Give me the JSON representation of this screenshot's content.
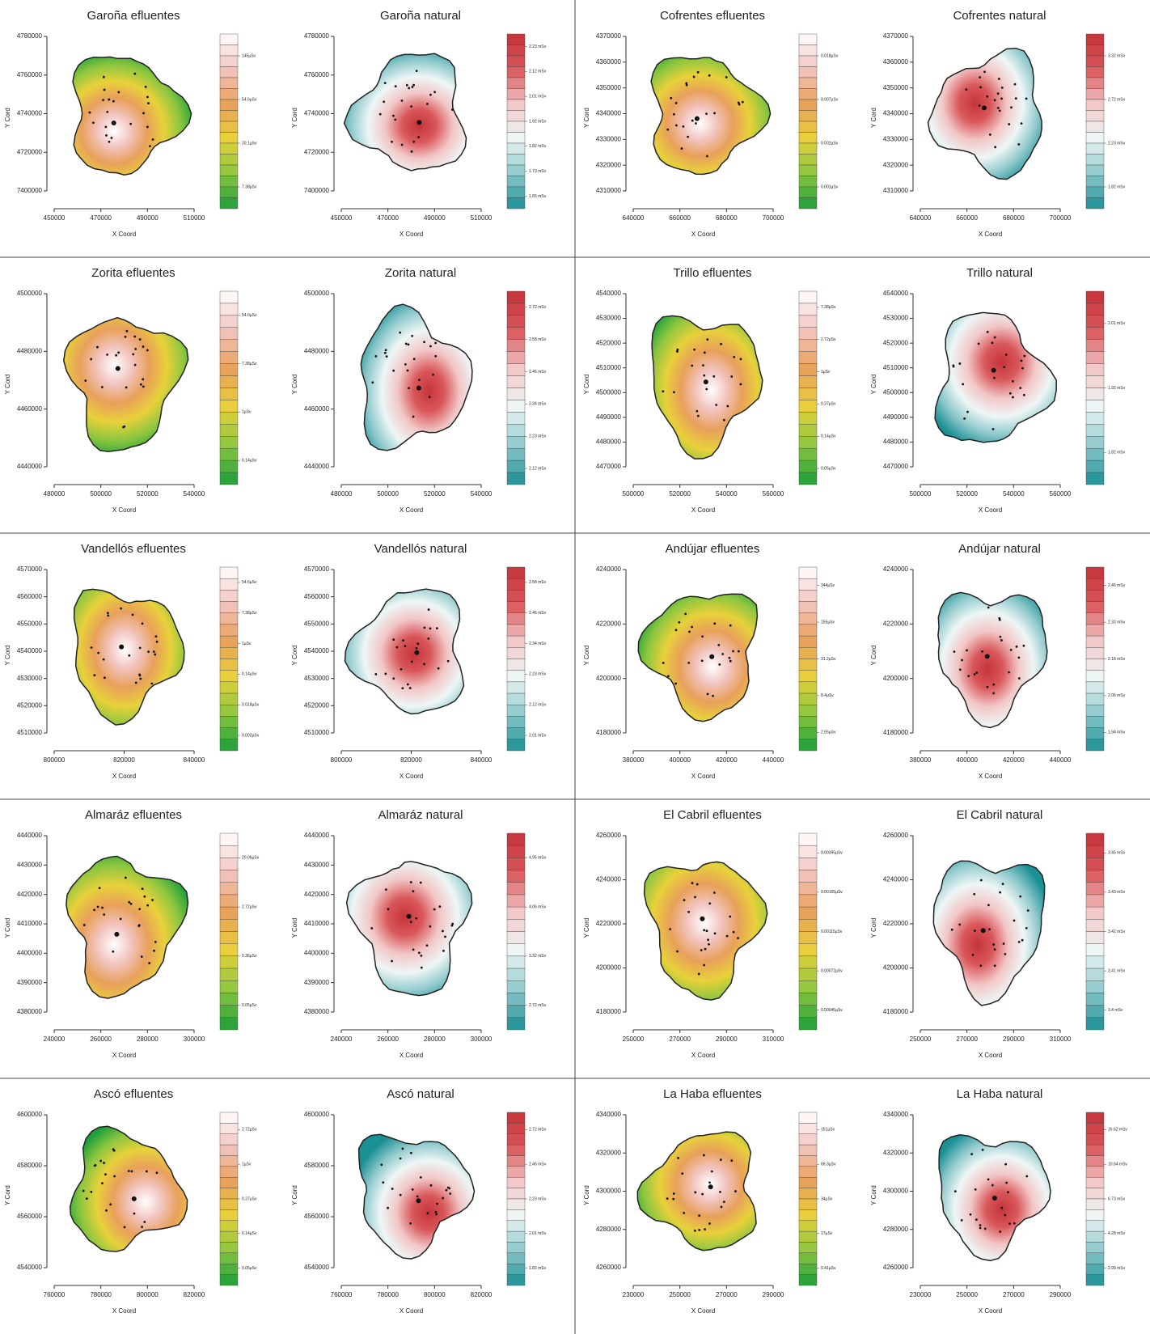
{
  "panels": [
    {
      "title": "Garoña efluentes",
      "xlabel": "X Coord",
      "ylabel": "Y Cord",
      "yticks": [
        4780000,
        4760000,
        4740000,
        4720000,
        7400000
      ],
      "xticks": [
        450000,
        470000,
        490000,
        510000
      ],
      "legend": [
        "145µSv",
        "54.6µSv",
        "20.1µSv",
        "7.38µSv"
      ],
      "colors": [
        "#1a9e3a",
        "#8cc63f",
        "#e8d13a",
        "#e8a05a",
        "#f2c4bf",
        "#ffffff"
      ]
    },
    {
      "title": "Garoña natural",
      "xlabel": "X Coord",
      "ylabel": "Y Cord",
      "yticks": [
        4780000,
        4760000,
        4740000,
        4720000,
        7400000
      ],
      "xticks": [
        450000,
        470000,
        490000,
        510000
      ],
      "legend": [
        "2.23 mSv",
        "2.12 mSv",
        "2.01 mSv",
        "1.92 mSv",
        "1.82 mSv",
        "1.73 mSv",
        "1.65 mSv"
      ],
      "colors": [
        "#1a8f94",
        "#8fc9cc",
        "#eef6f6",
        "#f2c6c6",
        "#d9575a",
        "#c4343a"
      ]
    },
    {
      "title": "Cofrentes efluentes",
      "xlabel": "X Coord",
      "ylabel": "Y Cord",
      "yticks": [
        4370000,
        4360000,
        4350000,
        4340000,
        4330000,
        4320000,
        4310000
      ],
      "xticks": [
        640000,
        660000,
        680000,
        700000
      ],
      "legend": [
        "0.018µSv",
        "0.007µSv",
        "0.002µSv",
        "0.001µSv"
      ],
      "colors": [
        "#1a9e3a",
        "#8cc63f",
        "#e8d13a",
        "#e8a05a",
        "#f2c4bf",
        "#ffffff"
      ]
    },
    {
      "title": "Cofrentes natural",
      "xlabel": "X Coord",
      "ylabel": "Y Cord",
      "yticks": [
        4370000,
        4360000,
        4350000,
        4340000,
        4330000,
        4320000,
        4310000
      ],
      "xticks": [
        640000,
        660000,
        680000,
        700000
      ],
      "legend": [
        "3.32 mSv",
        "2.72 mSv",
        "2.23 mSv",
        "1.82 mSv"
      ],
      "colors": [
        "#1a8f94",
        "#8fc9cc",
        "#eef6f6",
        "#f2c6c6",
        "#d9575a",
        "#c4343a"
      ]
    },
    {
      "title": "Zorita efluentes",
      "xlabel": "X Coord",
      "ylabel": "Y Cord",
      "yticks": [
        4500000,
        4480000,
        4460000,
        4440000
      ],
      "xticks": [
        480000,
        500000,
        520000,
        540000
      ],
      "legend": [
        "54.6µSv",
        "7.38µSv",
        "1µSv",
        "0.14µSv"
      ],
      "colors": [
        "#1a9e3a",
        "#8cc63f",
        "#e8d13a",
        "#e8a05a",
        "#f2c4bf",
        "#ffffff"
      ]
    },
    {
      "title": "Zorita natural",
      "xlabel": "X Coord",
      "ylabel": "Y Cord",
      "yticks": [
        4500000,
        4480000,
        4460000,
        4440000
      ],
      "xticks": [
        480000,
        500000,
        520000,
        540000
      ],
      "legend": [
        "2.72 mSv",
        "2.58 mSv",
        "2.46 mSv",
        "2.34 mSv",
        "2.23 mSv",
        "2.12 mSv"
      ],
      "colors": [
        "#1a8f94",
        "#8fc9cc",
        "#eef6f6",
        "#f2c6c6",
        "#d9575a",
        "#c4343a"
      ]
    },
    {
      "title": "Trillo efluentes",
      "xlabel": "X Coord",
      "ylabel": "Y Cord",
      "yticks": [
        4540000,
        4530000,
        4520000,
        4510000,
        4500000,
        4490000,
        4480000,
        4470000
      ],
      "xticks": [
        500000,
        520000,
        540000,
        560000
      ],
      "legend": [
        "7.38µSv",
        "2.72µSv",
        "1µSv",
        "0.37µSv",
        "0.14µSv",
        "0.05µSv"
      ],
      "colors": [
        "#1a9e3a",
        "#8cc63f",
        "#e8d13a",
        "#e8a05a",
        "#f2c4bf",
        "#ffffff"
      ]
    },
    {
      "title": "Trillo natural",
      "xlabel": "X Coord",
      "ylabel": "Y Cord",
      "yticks": [
        4540000,
        4530000,
        4520000,
        4510000,
        4500000,
        4490000,
        4480000,
        4470000
      ],
      "xticks": [
        500000,
        520000,
        540000,
        560000
      ],
      "legend": [
        "2.01 mSv",
        "1.92 mSv",
        "1.82 mSv"
      ],
      "colors": [
        "#1a8f94",
        "#8fc9cc",
        "#eef6f6",
        "#f2c6c6",
        "#d9575a",
        "#c4343a"
      ]
    },
    {
      "title": "Vandellós efluentes",
      "xlabel": "X Coord",
      "ylabel": "Y Cord",
      "yticks": [
        4570000,
        4560000,
        4550000,
        4540000,
        4530000,
        4520000,
        4510000
      ],
      "xticks": [
        800000,
        820000,
        840000
      ],
      "legend": [
        "54.6µSv",
        "7.38µSv",
        "1µSv",
        "0.14µSv",
        "0.018µSv",
        "0.002µSv"
      ],
      "colors": [
        "#1a9e3a",
        "#8cc63f",
        "#e8d13a",
        "#e8a05a",
        "#f2c4bf",
        "#ffffff"
      ]
    },
    {
      "title": "Vandellós natural",
      "xlabel": "X Coord",
      "ylabel": "Y Cord",
      "yticks": [
        4570000,
        4560000,
        4550000,
        4540000,
        4530000,
        4520000,
        4510000
      ],
      "xticks": [
        800000,
        820000,
        840000
      ],
      "legend": [
        "2.58 mSv",
        "2.46 mSv",
        "2.34 mSv",
        "2.23 mSv",
        "2.12 mSv",
        "2.01 mSv"
      ],
      "colors": [
        "#1a8f94",
        "#8fc9cc",
        "#eef6f6",
        "#f2c6c6",
        "#d9575a",
        "#c4343a"
      ]
    },
    {
      "title": "Andújar efluentes",
      "xlabel": "X Coord",
      "ylabel": "Y Cord",
      "yticks": [
        4240000,
        4220000,
        4200000,
        4180000
      ],
      "xticks": [
        380000,
        400000,
        420000,
        440000
      ],
      "legend": [
        "344µSv",
        "155µSv",
        "31.2µSv",
        "8.4µSv",
        "2.65µSv"
      ],
      "colors": [
        "#1a9e3a",
        "#8cc63f",
        "#e8d13a",
        "#e8a05a",
        "#f2c4bf",
        "#ffffff"
      ]
    },
    {
      "title": "Andújar natural",
      "xlabel": "X Coord",
      "ylabel": "Y Cord",
      "yticks": [
        4240000,
        4220000,
        4200000,
        4180000
      ],
      "xticks": [
        380000,
        400000,
        420000,
        440000
      ],
      "legend": [
        "2.46 mSv",
        "2.32 mSv",
        "2.18 mSv",
        "2.06 mSv",
        "1.94 mSv"
      ],
      "colors": [
        "#1a8f94",
        "#8fc9cc",
        "#eef6f6",
        "#f2c6c6",
        "#d9575a",
        "#c4343a"
      ]
    },
    {
      "title": "Almaráz efluentes",
      "xlabel": "X Coord",
      "ylabel": "Y Cord",
      "yticks": [
        4440000,
        4430000,
        4420000,
        4410000,
        4400000,
        4390000,
        4380000
      ],
      "xticks": [
        240000,
        260000,
        280000,
        300000
      ],
      "legend": [
        "20.06µSv",
        "2.72µSv",
        "0.36µSv",
        "0.05µSv"
      ],
      "colors": [
        "#1a9e3a",
        "#8cc63f",
        "#e8d13a",
        "#e8a05a",
        "#f2c4bf",
        "#ffffff"
      ]
    },
    {
      "title": "Almaráz natural",
      "xlabel": "X Coord",
      "ylabel": "Y Cord",
      "yticks": [
        4440000,
        4430000,
        4420000,
        4410000,
        4400000,
        4390000,
        4380000
      ],
      "xticks": [
        240000,
        260000,
        280000,
        300000
      ],
      "legend": [
        "4.95 mSv",
        "4.06 mSv",
        "3.32 mSv",
        "2.72 mSv"
      ],
      "colors": [
        "#1a8f94",
        "#8fc9cc",
        "#eef6f6",
        "#f2c6c6",
        "#d9575a",
        "#c4343a"
      ]
    },
    {
      "title": "El Cabril efluentes",
      "xlabel": "X Coord",
      "ylabel": "Y Cord",
      "yticks": [
        4260000,
        4240000,
        4220000,
        4200000,
        4180000
      ],
      "xticks": [
        250000,
        270000,
        290000,
        310000
      ],
      "legend": [
        "0.00395µSv",
        "0.00165µSv",
        "0.00115µSv",
        "0.00072µSv",
        "0.00045µSv"
      ],
      "colors": [
        "#1a9e3a",
        "#8cc63f",
        "#e8d13a",
        "#e8a05a",
        "#f2c4bf",
        "#ffffff"
      ]
    },
    {
      "title": "El Cabril natural",
      "xlabel": "X Coord",
      "ylabel": "Y Cord",
      "yticks": [
        4260000,
        4240000,
        4220000,
        4200000,
        4180000
      ],
      "xticks": [
        250000,
        270000,
        290000,
        310000
      ],
      "legend": [
        "3.45 mSv",
        "3.43 mSv",
        "3.42 mSv",
        "3.41 mSv",
        "3.4 mSv"
      ],
      "colors": [
        "#1a8f94",
        "#8fc9cc",
        "#eef6f6",
        "#f2c6c6",
        "#d9575a",
        "#c4343a"
      ]
    },
    {
      "title": "Ascó efluentes",
      "xlabel": "X Coord",
      "ylabel": "Y Cord",
      "yticks": [
        4600000,
        4580000,
        4560000,
        4540000
      ],
      "xticks": [
        760000,
        780000,
        800000,
        820000
      ],
      "legend": [
        "2.72µSv",
        "1µSv",
        "0.37µSv",
        "0.14µSv",
        "0.05µSv"
      ],
      "colors": [
        "#1a9e3a",
        "#8cc63f",
        "#e8d13a",
        "#e8a05a",
        "#f2c4bf",
        "#ffffff"
      ]
    },
    {
      "title": "Ascó natural",
      "xlabel": "X Coord",
      "ylabel": "Y Cord",
      "yticks": [
        4600000,
        4580000,
        4560000,
        4540000
      ],
      "xticks": [
        760000,
        780000,
        800000,
        820000
      ],
      "legend": [
        "2.72 mSv",
        "2.46 mSv",
        "2.23 mSv",
        "2.01 mSv",
        "1.82 mSv"
      ],
      "colors": [
        "#1a8f94",
        "#8fc9cc",
        "#eef6f6",
        "#f2c6c6",
        "#d9575a",
        "#c4343a"
      ]
    },
    {
      "title": "La Haba efluentes",
      "xlabel": "X Coord",
      "ylabel": "Y Cord",
      "yticks": [
        4340000,
        4320000,
        4300000,
        4280000,
        4260000
      ],
      "xticks": [
        230000,
        250000,
        270000,
        290000
      ],
      "legend": [
        "151µSv",
        "66.3µSv",
        "34µSv",
        "17µSv",
        "0.41µSv"
      ],
      "colors": [
        "#1a9e3a",
        "#8cc63f",
        "#e8d13a",
        "#e8a05a",
        "#f2c4bf",
        "#ffffff"
      ]
    },
    {
      "title": "La Haba natural",
      "xlabel": "X Coord",
      "ylabel": "Y Cord",
      "yticks": [
        4340000,
        4320000,
        4300000,
        4280000,
        4260000
      ],
      "xticks": [
        230000,
        250000,
        270000,
        290000
      ],
      "legend": [
        "16.62 mSv",
        "10.64 mSv",
        "6.73 mSv",
        "4.28 mSv",
        "2.99 mSv"
      ],
      "colors": [
        "#1a8f94",
        "#8fc9cc",
        "#eef6f6",
        "#f2c6c6",
        "#d9575a",
        "#c4343a"
      ]
    }
  ]
}
